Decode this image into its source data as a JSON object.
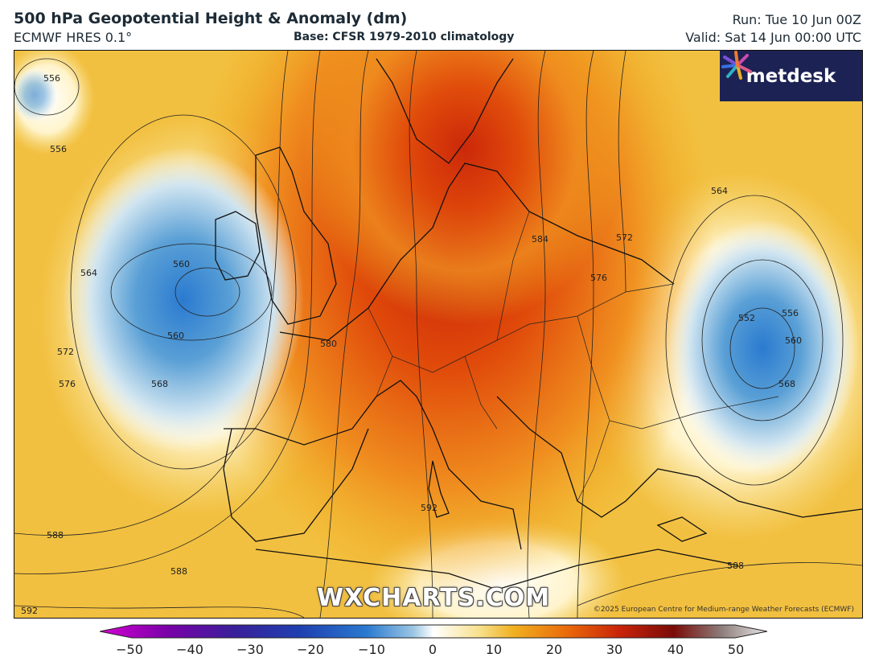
{
  "header": {
    "title": "500 hPa Geopotential Height & Anomaly (dm)",
    "model": "ECMWF HRES 0.1°",
    "base": "Base: CFSR 1979-2010 climatology",
    "run": "Run: Tue 10 Jun 00Z",
    "valid": "Valid: Sat 14 Jun 00:00 UTC"
  },
  "logo": {
    "text": "metdesk"
  },
  "watermark": "WXCHARTS.COM",
  "copyright": "©2025 European Centre for Medium-range Weather Forecasts (ECMWF)",
  "contour_labels": [
    "556",
    "560",
    "564",
    "556",
    "560",
    "572",
    "576",
    "568",
    "580",
    "584",
    "576",
    "572",
    "564",
    "552",
    "556",
    "560",
    "568",
    "592",
    "588",
    "588",
    "588",
    "592"
  ],
  "colorbar": {
    "ticks": [
      "−50",
      "−40",
      "−30",
      "−20",
      "−10",
      "0",
      "10",
      "20",
      "30",
      "40",
      "50"
    ],
    "colors": [
      "#d400d4",
      "#7a00a8",
      "#3a1f9a",
      "#1f3fb0",
      "#2a7ad0",
      "#9cc6e4",
      "#ffffff",
      "#f7e08a",
      "#f0b020",
      "#ea6a0a",
      "#c8220a",
      "#7a0c08",
      "#8c7b78",
      "#e8e8e8"
    ]
  }
}
